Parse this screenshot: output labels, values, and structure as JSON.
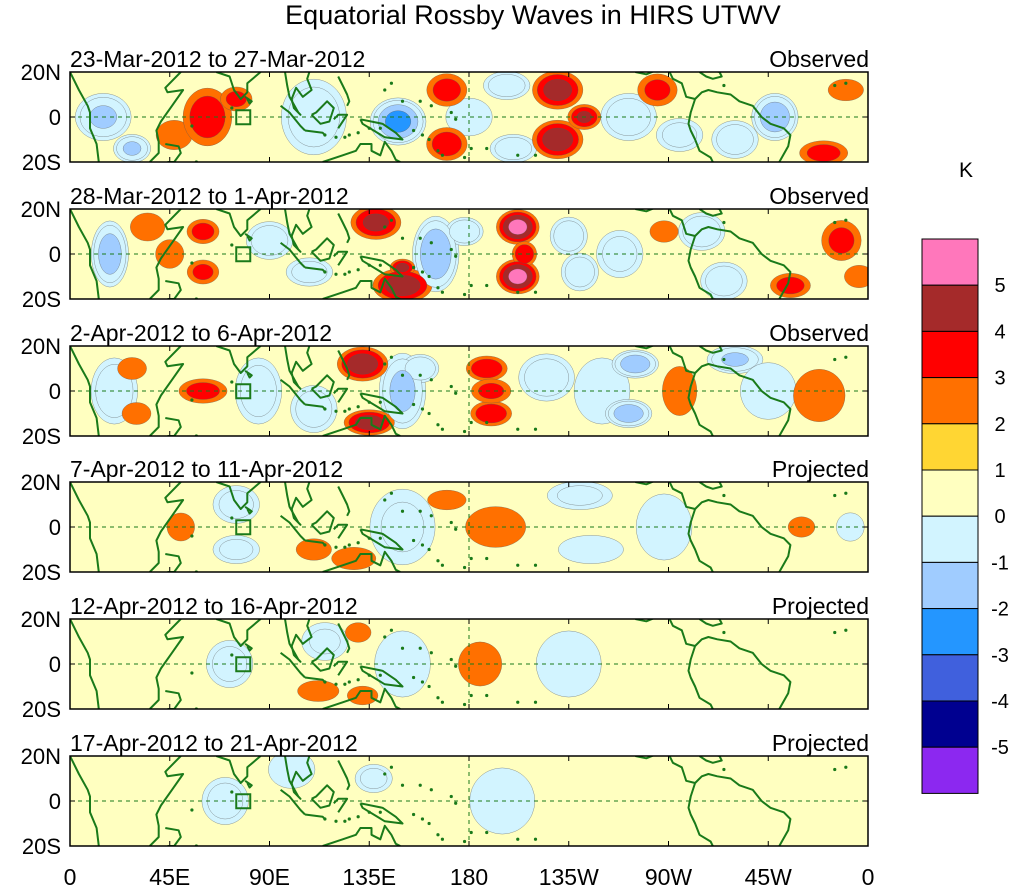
{
  "chart_data": {
    "type": "heatmap",
    "title": "Equatorial Rossby Waves in HIRS UTWV",
    "units": "K",
    "x_tick_labels": [
      "0",
      "45E",
      "90E",
      "135E",
      "180",
      "135W",
      "90W",
      "45W",
      "0"
    ],
    "x_range_deg": [
      0,
      360
    ],
    "y_tick_labels": [
      "20N",
      "0",
      "20S"
    ],
    "y_range_deg": [
      -20,
      20
    ],
    "colorbar": {
      "labels": [
        "5",
        "4",
        "3",
        "2",
        "1",
        "0",
        "-1",
        "-2",
        "-3",
        "-4",
        "-5"
      ],
      "colors": [
        "#ff77bb",
        "#a52a2a",
        "#ff0000",
        "#ff7000",
        "#ffd633",
        "#ffffc0",
        "#d2f4ff",
        "#a0ccff",
        "#2496ff",
        "#4060dd",
        "#000090",
        "#8c28f0"
      ]
    },
    "panels": [
      {
        "period": "23-Mar-2012 to 27-Mar-2012",
        "status": "Observed",
        "blobs": [
          [
            15,
            0,
            12,
            10,
            -2
          ],
          [
            28,
            -14,
            8,
            6,
            -2
          ],
          [
            47,
            -8,
            10,
            8,
            1.5
          ],
          [
            62,
            0,
            12,
            14,
            2.6
          ],
          [
            75,
            8,
            8,
            6,
            2.2
          ],
          [
            110,
            0,
            14,
            16,
            -1.6
          ],
          [
            148,
            -2,
            12,
            10,
            -3.2
          ],
          [
            170,
            12,
            10,
            8,
            2.4
          ],
          [
            170,
            -12,
            10,
            8,
            2.6
          ],
          [
            197,
            14,
            10,
            6,
            -1.6
          ],
          [
            200,
            -14,
            10,
            6,
            -1.6
          ],
          [
            180,
            0,
            10,
            8,
            -0.6
          ],
          [
            220,
            12,
            12,
            9,
            3.4
          ],
          [
            220,
            -10,
            12,
            9,
            3.6
          ],
          [
            232,
            0,
            8,
            6,
            3
          ],
          [
            252,
            0,
            12,
            10,
            -1.6
          ],
          [
            265,
            12,
            10,
            8,
            2.2
          ],
          [
            275,
            -8,
            10,
            7,
            -1.3
          ],
          [
            300,
            -10,
            10,
            8,
            -1.6
          ],
          [
            318,
            0,
            10,
            10,
            -2.6
          ],
          [
            340,
            -16,
            12,
            6,
            2.4
          ],
          [
            350,
            12,
            10,
            6,
            1.4
          ]
        ]
      },
      {
        "period": "28-Mar-2012 to 1-Apr-2012",
        "status": "Observed",
        "blobs": [
          [
            18,
            0,
            8,
            14,
            -2.5
          ],
          [
            35,
            12,
            10,
            8,
            1.3
          ],
          [
            45,
            0,
            8,
            8,
            1.4
          ],
          [
            60,
            10,
            8,
            6,
            2.4
          ],
          [
            60,
            -8,
            8,
            6,
            2.2
          ],
          [
            90,
            6,
            10,
            8,
            -1.6
          ],
          [
            108,
            -8,
            10,
            6,
            -1.4
          ],
          [
            138,
            14,
            12,
            8,
            3.2
          ],
          [
            150,
            -14,
            14,
            8,
            3.6
          ],
          [
            150,
            -6,
            6,
            4,
            3.2
          ],
          [
            165,
            0,
            10,
            16,
            -2.8
          ],
          [
            178,
            10,
            8,
            6,
            -1.8
          ],
          [
            202,
            12,
            10,
            8,
            4.2
          ],
          [
            202,
            -10,
            10,
            8,
            4.2
          ],
          [
            205,
            0,
            6,
            6,
            2.8
          ],
          [
            225,
            8,
            8,
            8,
            -1.7
          ],
          [
            230,
            -8,
            8,
            8,
            -1.6
          ],
          [
            248,
            0,
            10,
            10,
            -1.3
          ],
          [
            268,
            10,
            8,
            6,
            1.4
          ],
          [
            285,
            10,
            10,
            8,
            -1.8
          ],
          [
            295,
            -12,
            10,
            8,
            -1.6
          ],
          [
            325,
            -14,
            10,
            6,
            2.4
          ],
          [
            348,
            6,
            10,
            10,
            2.2
          ],
          [
            356,
            -10,
            8,
            6,
            1.6
          ]
        ]
      },
      {
        "period": "2-Apr-2012 to 6-Apr-2012",
        "status": "Observed",
        "blobs": [
          [
            20,
            0,
            10,
            14,
            -1.7
          ],
          [
            28,
            10,
            8,
            6,
            1.5
          ],
          [
            30,
            -10,
            8,
            6,
            1.5
          ],
          [
            60,
            0,
            12,
            6,
            2.4
          ],
          [
            85,
            0,
            10,
            14,
            -1.5
          ],
          [
            110,
            -8,
            10,
            10,
            -1.5
          ],
          [
            132,
            12,
            12,
            8,
            3.6
          ],
          [
            135,
            -14,
            12,
            6,
            3.4
          ],
          [
            150,
            0,
            10,
            16,
            -2.2
          ],
          [
            158,
            10,
            8,
            6,
            -1.8
          ],
          [
            188,
            10,
            10,
            6,
            2.8
          ],
          [
            190,
            -10,
            10,
            6,
            2.8
          ],
          [
            190,
            0,
            10,
            6,
            2.2
          ],
          [
            215,
            6,
            12,
            10,
            -1.6
          ],
          [
            240,
            0,
            12,
            14,
            -0.8
          ],
          [
            255,
            12,
            10,
            6,
            -2.6
          ],
          [
            252,
            -10,
            10,
            6,
            -2.6
          ],
          [
            275,
            0,
            10,
            14,
            1.3
          ],
          [
            300,
            14,
            12,
            6,
            -2
          ],
          [
            315,
            0,
            12,
            12,
            -0.6
          ],
          [
            338,
            -2,
            14,
            14,
            1.6
          ]
        ]
      },
      {
        "period": "7-Apr-2012 to 11-Apr-2012",
        "status": "Projected",
        "blobs": [
          [
            20,
            4,
            14,
            10,
            0.9
          ],
          [
            50,
            0,
            8,
            8,
            1.3
          ],
          [
            75,
            10,
            10,
            8,
            -1.3
          ],
          [
            75,
            -10,
            10,
            6,
            -1.2
          ],
          [
            110,
            -10,
            10,
            6,
            1.4
          ],
          [
            112,
            8,
            10,
            6,
            0.8
          ],
          [
            128,
            -14,
            12,
            6,
            1.6
          ],
          [
            150,
            0,
            14,
            16,
            -1
          ],
          [
            170,
            12,
            12,
            6,
            1.1
          ],
          [
            192,
            0,
            18,
            12,
            1.2
          ],
          [
            230,
            14,
            14,
            6,
            -1.1
          ],
          [
            235,
            -10,
            14,
            6,
            -0.8
          ],
          [
            268,
            0,
            12,
            14,
            -0.6
          ],
          [
            300,
            6,
            10,
            8,
            0.8
          ],
          [
            330,
            0,
            8,
            6,
            1.2
          ],
          [
            352,
            0,
            6,
            6,
            -0.6
          ]
        ]
      },
      {
        "period": "12-Apr-2012 to 16-Apr-2012",
        "status": "Projected",
        "blobs": [
          [
            30,
            -6,
            12,
            10,
            0.8
          ],
          [
            72,
            0,
            10,
            10,
            -1.3
          ],
          [
            115,
            10,
            10,
            8,
            -1
          ],
          [
            112,
            -12,
            12,
            6,
            1.3
          ],
          [
            130,
            14,
            8,
            6,
            1.1
          ],
          [
            132,
            -14,
            10,
            6,
            1
          ],
          [
            150,
            0,
            12,
            14,
            -0.8
          ],
          [
            185,
            0,
            12,
            12,
            1.5
          ],
          [
            225,
            0,
            14,
            14,
            -0.6
          ],
          [
            270,
            0,
            14,
            14,
            0.6
          ],
          [
            345,
            12,
            10,
            6,
            0.7
          ]
        ]
      },
      {
        "period": "17-Apr-2012 to 21-Apr-2012",
        "status": "Projected",
        "blobs": [
          [
            70,
            0,
            10,
            10,
            -1.4
          ],
          [
            100,
            14,
            10,
            8,
            -0.8
          ],
          [
            125,
            8,
            10,
            6,
            0.7
          ],
          [
            115,
            -14,
            10,
            6,
            0.9
          ],
          [
            137,
            10,
            8,
            6,
            -1.2
          ],
          [
            160,
            0,
            12,
            14,
            0.6
          ],
          [
            195,
            0,
            14,
            14,
            -0.5
          ],
          [
            250,
            4,
            16,
            12,
            0.6
          ],
          [
            300,
            -8,
            12,
            8,
            0.5
          ]
        ]
      }
    ]
  }
}
